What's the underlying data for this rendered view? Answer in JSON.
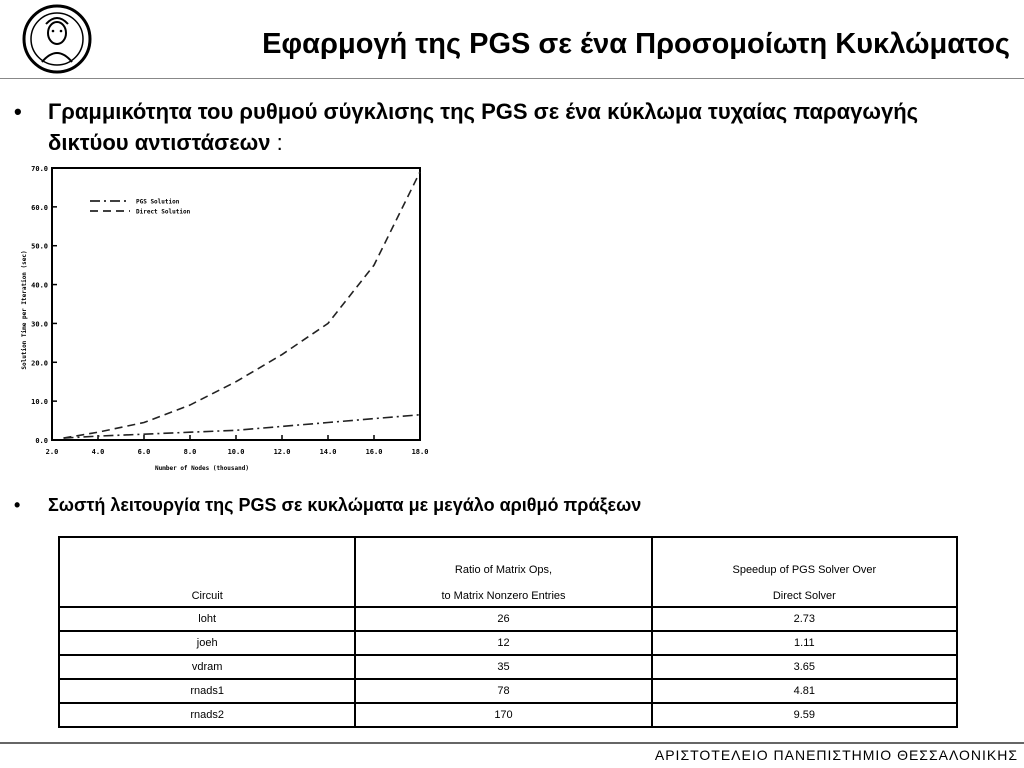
{
  "header": {
    "title": "Εφαρμογή της PGS σε ένα Προσομοίωτη Κυκλώματος"
  },
  "bullets": [
    {
      "text": "Γραμμικότητα του ρυθμού σύγκλισης της PGS σε ένα κύκλωμα τυχαίας παραγωγής δικτύου αντιστάσεων",
      "suffix": " :"
    },
    {
      "text": "Σωστή λειτουργία της PGS σε κυκλώματα με μεγάλο αριθμό πράξεων"
    }
  ],
  "chart_data": {
    "type": "line",
    "xlabel": "Number of Nodes (thousand)",
    "ylabel": "Solution Time per Iteration (sec)",
    "xlim": [
      2,
      18
    ],
    "ylim": [
      0,
      70
    ],
    "x_ticks": [
      "2.0",
      "4.0",
      "6.0",
      "8.0",
      "10.0",
      "12.0",
      "14.0",
      "16.0",
      "18.0"
    ],
    "y_ticks": [
      "0.0",
      "10.0",
      "20.0",
      "30.0",
      "40.0",
      "50.0",
      "60.0",
      "70.0"
    ],
    "legend_position": "top-left",
    "series": [
      {
        "name": "PGS Solution",
        "style": "dash-dot",
        "x": [
          2.5,
          4,
          6,
          8,
          10,
          12,
          14,
          16,
          18
        ],
        "y": [
          0.5,
          1.0,
          1.5,
          2.0,
          2.5,
          3.5,
          4.5,
          5.5,
          6.5
        ]
      },
      {
        "name": "Direct Solution",
        "style": "dashed",
        "x": [
          2.5,
          4,
          6,
          8,
          10,
          12,
          14,
          16,
          18
        ],
        "y": [
          0.5,
          2.0,
          4.5,
          9.0,
          15.0,
          22.0,
          30.0,
          45.0,
          69.0
        ]
      }
    ]
  },
  "table": {
    "headers": [
      {
        "line1": "",
        "line2": "Circuit"
      },
      {
        "line1": "Ratio of Matrix Ops,",
        "line2": "to Matrix Nonzero Entries"
      },
      {
        "line1": "Speedup of PGS Solver Over",
        "line2": "Direct Solver"
      }
    ],
    "rows": [
      [
        "loht",
        "26",
        "2.73"
      ],
      [
        "joeh",
        "12",
        "1.11"
      ],
      [
        "vdram",
        "35",
        "3.65"
      ],
      [
        "rnads1",
        "78",
        "4.81"
      ],
      [
        "rnads2",
        "170",
        "9.59"
      ]
    ]
  },
  "footer": {
    "university": "ΑΡΙΣΤΟΤΕΛΕΙΟ ΠΑΝΕΠΙΣΤΗΜΙΟ ΘΕΣΣΑΛΟΝΙΚΗΣ"
  }
}
